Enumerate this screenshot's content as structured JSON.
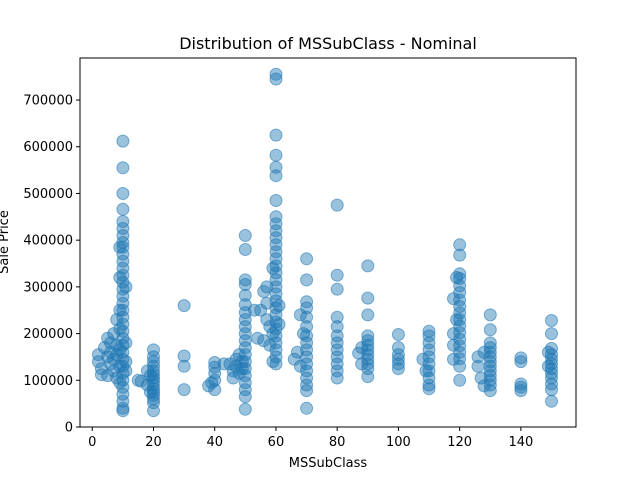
{
  "chart_data": {
    "type": "scatter",
    "title": "Distribution of MSSubClass - Nominal",
    "xlabel": "MSSubClass",
    "ylabel": "Sale Price",
    "xlim": [
      -4,
      158
    ],
    "ylim": [
      0,
      790000
    ],
    "x_ticks": [
      0,
      20,
      40,
      60,
      80,
      100,
      120,
      140
    ],
    "y_ticks": [
      0,
      100000,
      200000,
      300000,
      400000,
      500000,
      600000,
      700000
    ],
    "grid": false,
    "marker_color": "#1f77b4",
    "marker_alpha": 0.45,
    "points": [
      {
        "x": 2,
        "y": 155000
      },
      {
        "x": 2,
        "y": 140000
      },
      {
        "x": 3,
        "y": 125000
      },
      {
        "x": 3,
        "y": 112000
      },
      {
        "x": 4,
        "y": 170000
      },
      {
        "x": 5,
        "y": 190000
      },
      {
        "x": 5,
        "y": 150000
      },
      {
        "x": 5,
        "y": 110000
      },
      {
        "x": 6,
        "y": 135000
      },
      {
        "x": 6,
        "y": 160000
      },
      {
        "x": 6,
        "y": 180000
      },
      {
        "x": 7,
        "y": 120000
      },
      {
        "x": 7,
        "y": 200000
      },
      {
        "x": 7,
        "y": 145000
      },
      {
        "x": 8,
        "y": 230000
      },
      {
        "x": 8,
        "y": 175000
      },
      {
        "x": 8,
        "y": 105000
      },
      {
        "x": 8,
        "y": 155000
      },
      {
        "x": 9,
        "y": 210000
      },
      {
        "x": 9,
        "y": 250000
      },
      {
        "x": 9,
        "y": 130000
      },
      {
        "x": 9,
        "y": 95000
      },
      {
        "x": 9,
        "y": 320000
      },
      {
        "x": 9,
        "y": 385000
      },
      {
        "x": 9,
        "y": 165000
      },
      {
        "x": 10,
        "y": 612000
      },
      {
        "x": 10,
        "y": 555000
      },
      {
        "x": 10,
        "y": 500000
      },
      {
        "x": 10,
        "y": 466000
      },
      {
        "x": 10,
        "y": 440000
      },
      {
        "x": 10,
        "y": 425000
      },
      {
        "x": 10,
        "y": 410000
      },
      {
        "x": 10,
        "y": 395000
      },
      {
        "x": 10,
        "y": 385000
      },
      {
        "x": 10,
        "y": 370000
      },
      {
        "x": 10,
        "y": 355000
      },
      {
        "x": 10,
        "y": 340000
      },
      {
        "x": 10,
        "y": 325000
      },
      {
        "x": 10,
        "y": 310000
      },
      {
        "x": 10,
        "y": 295000
      },
      {
        "x": 10,
        "y": 280000
      },
      {
        "x": 10,
        "y": 265000
      },
      {
        "x": 10,
        "y": 250000
      },
      {
        "x": 10,
        "y": 235000
      },
      {
        "x": 10,
        "y": 220000
      },
      {
        "x": 10,
        "y": 205000
      },
      {
        "x": 10,
        "y": 190000
      },
      {
        "x": 10,
        "y": 175000
      },
      {
        "x": 10,
        "y": 160000
      },
      {
        "x": 10,
        "y": 145000
      },
      {
        "x": 10,
        "y": 130000
      },
      {
        "x": 10,
        "y": 115000
      },
      {
        "x": 10,
        "y": 100000
      },
      {
        "x": 10,
        "y": 85000
      },
      {
        "x": 10,
        "y": 70000
      },
      {
        "x": 10,
        "y": 55000
      },
      {
        "x": 10,
        "y": 40000
      },
      {
        "x": 10,
        "y": 35000
      },
      {
        "x": 11,
        "y": 180000
      },
      {
        "x": 11,
        "y": 140000
      },
      {
        "x": 11,
        "y": 300000
      },
      {
        "x": 11,
        "y": 120000
      },
      {
        "x": 15,
        "y": 100000
      },
      {
        "x": 16,
        "y": 98000
      },
      {
        "x": 18,
        "y": 120000
      },
      {
        "x": 18,
        "y": 90000
      },
      {
        "x": 19,
        "y": 110000
      },
      {
        "x": 19,
        "y": 75000
      },
      {
        "x": 20,
        "y": 165000
      },
      {
        "x": 20,
        "y": 150000
      },
      {
        "x": 20,
        "y": 140000
      },
      {
        "x": 20,
        "y": 130000
      },
      {
        "x": 20,
        "y": 120000
      },
      {
        "x": 20,
        "y": 112000
      },
      {
        "x": 20,
        "y": 105000
      },
      {
        "x": 20,
        "y": 98000
      },
      {
        "x": 20,
        "y": 90000
      },
      {
        "x": 20,
        "y": 82000
      },
      {
        "x": 20,
        "y": 75000
      },
      {
        "x": 20,
        "y": 68000
      },
      {
        "x": 20,
        "y": 60000
      },
      {
        "x": 20,
        "y": 52000
      },
      {
        "x": 20,
        "y": 35000
      },
      {
        "x": 30,
        "y": 260000
      },
      {
        "x": 30,
        "y": 152000
      },
      {
        "x": 30,
        "y": 130000
      },
      {
        "x": 30,
        "y": 80000
      },
      {
        "x": 38,
        "y": 88000
      },
      {
        "x": 39,
        "y": 95000
      },
      {
        "x": 40,
        "y": 138000
      },
      {
        "x": 40,
        "y": 128000
      },
      {
        "x": 40,
        "y": 115000
      },
      {
        "x": 40,
        "y": 100000
      },
      {
        "x": 40,
        "y": 80000
      },
      {
        "x": 43,
        "y": 135000
      },
      {
        "x": 45,
        "y": 135000
      },
      {
        "x": 46,
        "y": 120000
      },
      {
        "x": 46,
        "y": 105000
      },
      {
        "x": 47,
        "y": 145000
      },
      {
        "x": 47,
        "y": 130000
      },
      {
        "x": 48,
        "y": 155000
      },
      {
        "x": 48,
        "y": 115000
      },
      {
        "x": 49,
        "y": 140000
      },
      {
        "x": 49,
        "y": 125000
      },
      {
        "x": 50,
        "y": 410000
      },
      {
        "x": 50,
        "y": 380000
      },
      {
        "x": 50,
        "y": 315000
      },
      {
        "x": 50,
        "y": 305000
      },
      {
        "x": 50,
        "y": 282000
      },
      {
        "x": 50,
        "y": 262000
      },
      {
        "x": 50,
        "y": 245000
      },
      {
        "x": 50,
        "y": 230000
      },
      {
        "x": 50,
        "y": 215000
      },
      {
        "x": 50,
        "y": 200000
      },
      {
        "x": 50,
        "y": 185000
      },
      {
        "x": 50,
        "y": 170000
      },
      {
        "x": 50,
        "y": 155000
      },
      {
        "x": 50,
        "y": 140000
      },
      {
        "x": 50,
        "y": 125000
      },
      {
        "x": 50,
        "y": 110000
      },
      {
        "x": 50,
        "y": 95000
      },
      {
        "x": 50,
        "y": 80000
      },
      {
        "x": 50,
        "y": 65000
      },
      {
        "x": 50,
        "y": 38000
      },
      {
        "x": 53,
        "y": 250000
      },
      {
        "x": 54,
        "y": 190000
      },
      {
        "x": 55,
        "y": 250000
      },
      {
        "x": 56,
        "y": 290000
      },
      {
        "x": 56,
        "y": 185000
      },
      {
        "x": 57,
        "y": 300000
      },
      {
        "x": 57,
        "y": 265000
      },
      {
        "x": 57,
        "y": 230000
      },
      {
        "x": 58,
        "y": 215000
      },
      {
        "x": 58,
        "y": 175000
      },
      {
        "x": 59,
        "y": 340000
      },
      {
        "x": 59,
        "y": 200000
      },
      {
        "x": 59,
        "y": 140000
      },
      {
        "x": 60,
        "y": 755000
      },
      {
        "x": 60,
        "y": 745000
      },
      {
        "x": 60,
        "y": 625000
      },
      {
        "x": 60,
        "y": 582000
      },
      {
        "x": 60,
        "y": 556000
      },
      {
        "x": 60,
        "y": 538000
      },
      {
        "x": 60,
        "y": 485000
      },
      {
        "x": 60,
        "y": 450000
      },
      {
        "x": 60,
        "y": 435000
      },
      {
        "x": 60,
        "y": 420000
      },
      {
        "x": 60,
        "y": 405000
      },
      {
        "x": 60,
        "y": 390000
      },
      {
        "x": 60,
        "y": 375000
      },
      {
        "x": 60,
        "y": 360000
      },
      {
        "x": 60,
        "y": 345000
      },
      {
        "x": 60,
        "y": 330000
      },
      {
        "x": 60,
        "y": 315000
      },
      {
        "x": 60,
        "y": 300000
      },
      {
        "x": 60,
        "y": 285000
      },
      {
        "x": 60,
        "y": 270000
      },
      {
        "x": 60,
        "y": 255000
      },
      {
        "x": 60,
        "y": 240000
      },
      {
        "x": 60,
        "y": 225000
      },
      {
        "x": 60,
        "y": 210000
      },
      {
        "x": 60,
        "y": 195000
      },
      {
        "x": 60,
        "y": 180000
      },
      {
        "x": 60,
        "y": 165000
      },
      {
        "x": 60,
        "y": 150000
      },
      {
        "x": 60,
        "y": 135000
      },
      {
        "x": 61,
        "y": 260000
      },
      {
        "x": 61,
        "y": 220000
      },
      {
        "x": 66,
        "y": 145000
      },
      {
        "x": 67,
        "y": 160000
      },
      {
        "x": 68,
        "y": 240000
      },
      {
        "x": 68,
        "y": 130000
      },
      {
        "x": 69,
        "y": 200000
      },
      {
        "x": 70,
        "y": 360000
      },
      {
        "x": 70,
        "y": 315000
      },
      {
        "x": 70,
        "y": 268000
      },
      {
        "x": 70,
        "y": 255000
      },
      {
        "x": 70,
        "y": 235000
      },
      {
        "x": 70,
        "y": 215000
      },
      {
        "x": 70,
        "y": 195000
      },
      {
        "x": 70,
        "y": 180000
      },
      {
        "x": 70,
        "y": 165000
      },
      {
        "x": 70,
        "y": 150000
      },
      {
        "x": 70,
        "y": 135000
      },
      {
        "x": 70,
        "y": 120000
      },
      {
        "x": 70,
        "y": 105000
      },
      {
        "x": 70,
        "y": 90000
      },
      {
        "x": 70,
        "y": 78000
      },
      {
        "x": 70,
        "y": 40000
      },
      {
        "x": 80,
        "y": 475000
      },
      {
        "x": 80,
        "y": 325000
      },
      {
        "x": 80,
        "y": 295000
      },
      {
        "x": 80,
        "y": 235000
      },
      {
        "x": 80,
        "y": 215000
      },
      {
        "x": 80,
        "y": 195000
      },
      {
        "x": 80,
        "y": 180000
      },
      {
        "x": 80,
        "y": 165000
      },
      {
        "x": 80,
        "y": 150000
      },
      {
        "x": 80,
        "y": 135000
      },
      {
        "x": 80,
        "y": 120000
      },
      {
        "x": 80,
        "y": 105000
      },
      {
        "x": 87,
        "y": 158000
      },
      {
        "x": 88,
        "y": 170000
      },
      {
        "x": 88,
        "y": 135000
      },
      {
        "x": 90,
        "y": 345000
      },
      {
        "x": 90,
        "y": 276000
      },
      {
        "x": 90,
        "y": 240000
      },
      {
        "x": 90,
        "y": 195000
      },
      {
        "x": 90,
        "y": 185000
      },
      {
        "x": 90,
        "y": 175000
      },
      {
        "x": 90,
        "y": 165000
      },
      {
        "x": 90,
        "y": 155000
      },
      {
        "x": 90,
        "y": 145000
      },
      {
        "x": 90,
        "y": 135000
      },
      {
        "x": 90,
        "y": 125000
      },
      {
        "x": 90,
        "y": 108000
      },
      {
        "x": 100,
        "y": 198000
      },
      {
        "x": 100,
        "y": 170000
      },
      {
        "x": 100,
        "y": 155000
      },
      {
        "x": 100,
        "y": 145000
      },
      {
        "x": 100,
        "y": 135000
      },
      {
        "x": 100,
        "y": 125000
      },
      {
        "x": 108,
        "y": 145000
      },
      {
        "x": 109,
        "y": 120000
      },
      {
        "x": 110,
        "y": 205000
      },
      {
        "x": 110,
        "y": 195000
      },
      {
        "x": 110,
        "y": 180000
      },
      {
        "x": 110,
        "y": 165000
      },
      {
        "x": 110,
        "y": 150000
      },
      {
        "x": 110,
        "y": 135000
      },
      {
        "x": 110,
        "y": 120000
      },
      {
        "x": 110,
        "y": 105000
      },
      {
        "x": 110,
        "y": 90000
      },
      {
        "x": 110,
        "y": 82000
      },
      {
        "x": 118,
        "y": 275000
      },
      {
        "x": 118,
        "y": 200000
      },
      {
        "x": 118,
        "y": 175000
      },
      {
        "x": 118,
        "y": 145000
      },
      {
        "x": 119,
        "y": 320000
      },
      {
        "x": 119,
        "y": 230000
      },
      {
        "x": 120,
        "y": 390000
      },
      {
        "x": 120,
        "y": 368000
      },
      {
        "x": 120,
        "y": 328000
      },
      {
        "x": 120,
        "y": 318000
      },
      {
        "x": 120,
        "y": 302000
      },
      {
        "x": 120,
        "y": 288000
      },
      {
        "x": 120,
        "y": 272000
      },
      {
        "x": 120,
        "y": 258000
      },
      {
        "x": 120,
        "y": 244000
      },
      {
        "x": 120,
        "y": 230000
      },
      {
        "x": 120,
        "y": 216000
      },
      {
        "x": 120,
        "y": 202000
      },
      {
        "x": 120,
        "y": 188000
      },
      {
        "x": 120,
        "y": 174000
      },
      {
        "x": 120,
        "y": 160000
      },
      {
        "x": 120,
        "y": 146000
      },
      {
        "x": 120,
        "y": 130000
      },
      {
        "x": 120,
        "y": 100000
      },
      {
        "x": 126,
        "y": 150000
      },
      {
        "x": 126,
        "y": 130000
      },
      {
        "x": 127,
        "y": 105000
      },
      {
        "x": 128,
        "y": 160000
      },
      {
        "x": 128,
        "y": 88000
      },
      {
        "x": 130,
        "y": 240000
      },
      {
        "x": 130,
        "y": 208000
      },
      {
        "x": 130,
        "y": 180000
      },
      {
        "x": 130,
        "y": 170000
      },
      {
        "x": 130,
        "y": 160000
      },
      {
        "x": 130,
        "y": 150000
      },
      {
        "x": 130,
        "y": 140000
      },
      {
        "x": 130,
        "y": 130000
      },
      {
        "x": 130,
        "y": 120000
      },
      {
        "x": 130,
        "y": 110000
      },
      {
        "x": 130,
        "y": 100000
      },
      {
        "x": 130,
        "y": 90000
      },
      {
        "x": 130,
        "y": 78000
      },
      {
        "x": 140,
        "y": 148000
      },
      {
        "x": 140,
        "y": 140000
      },
      {
        "x": 140,
        "y": 92000
      },
      {
        "x": 140,
        "y": 85000
      },
      {
        "x": 140,
        "y": 78000
      },
      {
        "x": 149,
        "y": 160000
      },
      {
        "x": 149,
        "y": 130000
      },
      {
        "x": 150,
        "y": 228000
      },
      {
        "x": 150,
        "y": 200000
      },
      {
        "x": 150,
        "y": 168000
      },
      {
        "x": 150,
        "y": 155000
      },
      {
        "x": 150,
        "y": 145000
      },
      {
        "x": 150,
        "y": 135000
      },
      {
        "x": 150,
        "y": 125000
      },
      {
        "x": 150,
        "y": 115000
      },
      {
        "x": 150,
        "y": 105000
      },
      {
        "x": 150,
        "y": 92000
      },
      {
        "x": 150,
        "y": 80000
      },
      {
        "x": 150,
        "y": 55000
      }
    ]
  }
}
